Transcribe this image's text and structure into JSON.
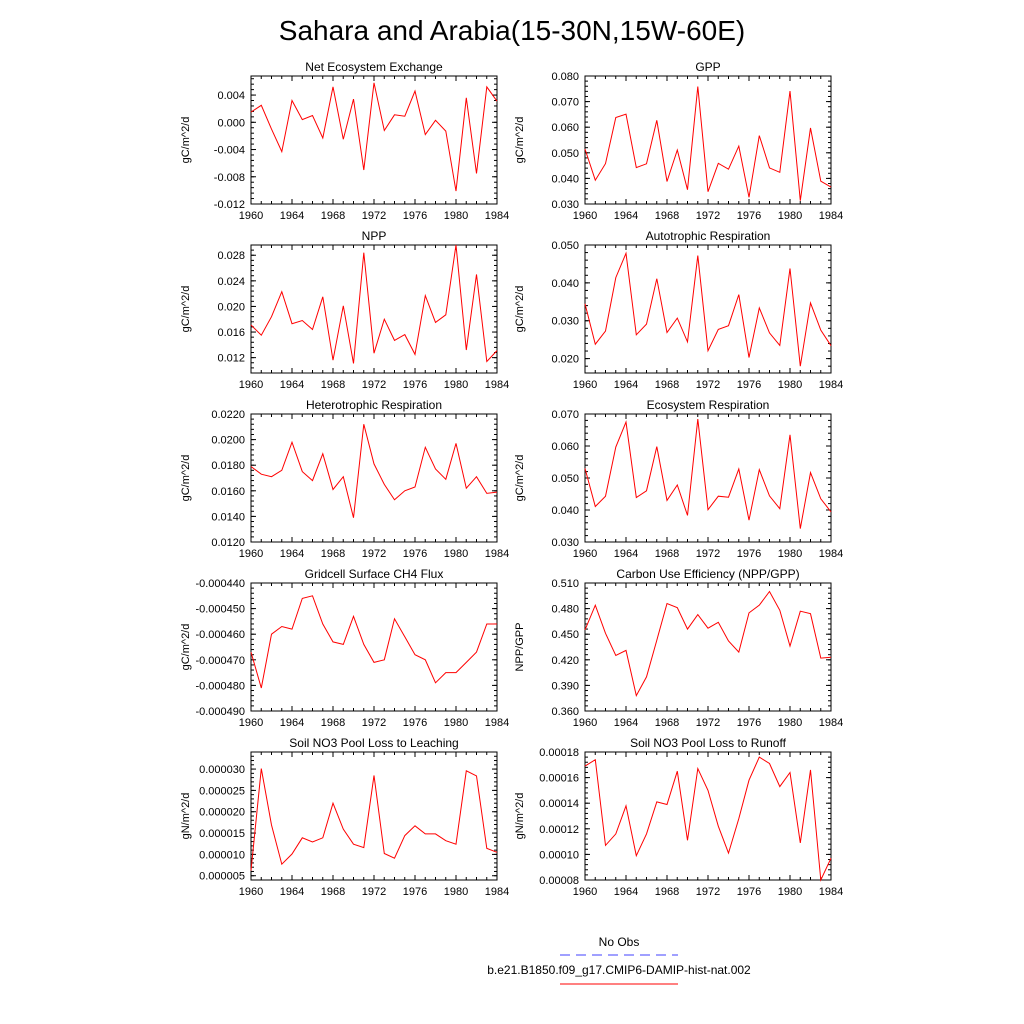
{
  "page": {
    "title": "Sahara and Arabia(15-30N,15W-60E)"
  },
  "colors": {
    "model_line": "#ff0000",
    "obs_line": "#4040ff",
    "axis": "#000000"
  },
  "legend": {
    "obs_label": "No Obs",
    "model_label": "b.e21.B1850.f09_g17.CMIP6-DAMIP-hist-nat.002"
  },
  "chart_data": [
    {
      "type": "line",
      "title": "Net Ecosystem Exchange",
      "ylabel": "gC/m^2/d",
      "ylim": [
        -0.012,
        0.0068
      ],
      "yticks": [
        "0.004",
        "0.000",
        "-0.004",
        "-0.008",
        "-0.012"
      ],
      "ytick_values": [
        0.004,
        0.0,
        -0.004,
        -0.008,
        -0.012
      ],
      "xlim": [
        1960,
        1984
      ],
      "xticks": [
        "1960",
        "1964",
        "1968",
        "1972",
        "1976",
        "1980",
        "1984"
      ],
      "grid": false,
      "series": [
        {
          "x": [
            1960,
            1961,
            1962,
            1963,
            1964,
            1965,
            1966,
            1967,
            1968,
            1969,
            1970,
            1971,
            1972,
            1973,
            1974,
            1975,
            1976,
            1977,
            1978,
            1979,
            1980,
            1981,
            1982,
            1983,
            1984
          ],
          "values": [
            0.0015,
            0.0025,
            -0.001,
            -0.0043,
            0.0032,
            0.0004,
            0.001,
            -0.0023,
            0.0052,
            -0.0025,
            0.0034,
            -0.007,
            0.0058,
            -0.0012,
            0.0011,
            0.0009,
            0.0046,
            -0.0018,
            0.0003,
            -0.0013,
            -0.0101,
            0.0036,
            -0.0075,
            0.0052,
            0.0031
          ]
        }
      ]
    },
    {
      "type": "line",
      "title": "GPP",
      "ylabel": "gC/m^2/d",
      "ylim": [
        0.03,
        0.08
      ],
      "yticks": [
        "0.080",
        "0.070",
        "0.060",
        "0.050",
        "0.040",
        "0.030"
      ],
      "ytick_values": [
        0.08,
        0.07,
        0.06,
        0.05,
        0.04,
        0.03
      ],
      "xlim": [
        1960,
        1984
      ],
      "xticks": [
        "1960",
        "1964",
        "1968",
        "1972",
        "1976",
        "1980",
        "1984"
      ],
      "grid": false,
      "series": [
        {
          "x": [
            1960,
            1961,
            1962,
            1963,
            1964,
            1965,
            1966,
            1967,
            1968,
            1969,
            1970,
            1971,
            1972,
            1973,
            1974,
            1975,
            1976,
            1977,
            1978,
            1979,
            1980,
            1981,
            1982,
            1983,
            1984
          ],
          "values": [
            0.0515,
            0.0393,
            0.0458,
            0.0638,
            0.0651,
            0.0442,
            0.0457,
            0.0627,
            0.0388,
            0.0511,
            0.0356,
            0.0759,
            0.0348,
            0.0459,
            0.0436,
            0.0526,
            0.0326,
            0.0567,
            0.0441,
            0.0424,
            0.0741,
            0.0313,
            0.0597,
            0.0389,
            0.0366
          ]
        }
      ]
    },
    {
      "type": "line",
      "title": "NPP",
      "ylabel": "gC/m^2/d",
      "ylim": [
        0.0096,
        0.0296
      ],
      "yticks": [
        "0.028",
        "0.024",
        "0.020",
        "0.016",
        "0.012"
      ],
      "ytick_values": [
        0.028,
        0.024,
        0.02,
        0.016,
        0.012
      ],
      "xlim": [
        1960,
        1984
      ],
      "xticks": [
        "1960",
        "1964",
        "1968",
        "1972",
        "1976",
        "1980",
        "1984"
      ],
      "grid": false,
      "series": [
        {
          "x": [
            1960,
            1961,
            1962,
            1963,
            1964,
            1965,
            1966,
            1967,
            1968,
            1969,
            1970,
            1971,
            1972,
            1973,
            1974,
            1975,
            1976,
            1977,
            1978,
            1979,
            1980,
            1981,
            1982,
            1983,
            1984
          ],
          "values": [
            0.0171,
            0.0155,
            0.0184,
            0.0223,
            0.0173,
            0.0178,
            0.0164,
            0.0215,
            0.0116,
            0.0201,
            0.0111,
            0.0284,
            0.0127,
            0.018,
            0.0147,
            0.0156,
            0.0125,
            0.0217,
            0.0175,
            0.0187,
            0.0296,
            0.0132,
            0.025,
            0.0114,
            0.0131
          ]
        }
      ]
    },
    {
      "type": "line",
      "title": "Autotrophic Respiration",
      "ylabel": "gC/m^2/d",
      "ylim": [
        0.0162,
        0.05
      ],
      "yticks": [
        "0.050",
        "0.040",
        "0.030",
        "0.020"
      ],
      "ytick_values": [
        0.05,
        0.04,
        0.03,
        0.02
      ],
      "xlim": [
        1960,
        1984
      ],
      "xticks": [
        "1960",
        "1964",
        "1968",
        "1972",
        "1976",
        "1980",
        "1984"
      ],
      "grid": false,
      "series": [
        {
          "x": [
            1960,
            1961,
            1962,
            1963,
            1964,
            1965,
            1966,
            1967,
            1968,
            1969,
            1970,
            1971,
            1972,
            1973,
            1974,
            1975,
            1976,
            1977,
            1978,
            1979,
            1980,
            1981,
            1982,
            1983,
            1984
          ],
          "values": [
            0.0345,
            0.0238,
            0.0273,
            0.0414,
            0.0478,
            0.0263,
            0.0291,
            0.0411,
            0.0269,
            0.0307,
            0.0244,
            0.0472,
            0.0221,
            0.0277,
            0.0287,
            0.0369,
            0.0203,
            0.0334,
            0.0268,
            0.0235,
            0.0438,
            0.018,
            0.0347,
            0.0275,
            0.0234
          ]
        }
      ]
    },
    {
      "type": "line",
      "title": "Heterotrophic Respiration",
      "ylabel": "gC/m^2/d",
      "ylim": [
        0.012,
        0.022
      ],
      "yticks": [
        "0.0220",
        "0.0200",
        "0.0180",
        "0.0160",
        "0.0140",
        "0.0120"
      ],
      "ytick_values": [
        0.022,
        0.02,
        0.018,
        0.016,
        0.014,
        0.012
      ],
      "xlim": [
        1960,
        1984
      ],
      "xticks": [
        "1960",
        "1964",
        "1968",
        "1972",
        "1976",
        "1980",
        "1984"
      ],
      "grid": false,
      "series": [
        {
          "x": [
            1960,
            1961,
            1962,
            1963,
            1964,
            1965,
            1966,
            1967,
            1968,
            1969,
            1970,
            1971,
            1972,
            1973,
            1974,
            1975,
            1976,
            1977,
            1978,
            1979,
            1980,
            1981,
            1982,
            1983,
            1984
          ],
          "values": [
            0.0179,
            0.0173,
            0.0171,
            0.0176,
            0.0198,
            0.0175,
            0.0168,
            0.0189,
            0.0161,
            0.0171,
            0.0139,
            0.0212,
            0.0181,
            0.0165,
            0.0153,
            0.016,
            0.0163,
            0.0194,
            0.0177,
            0.0169,
            0.0197,
            0.0162,
            0.0171,
            0.0158,
            0.0159
          ]
        }
      ]
    },
    {
      "type": "line",
      "title": "Ecosystem Respiration",
      "ylabel": "gC/m^2/d",
      "ylim": [
        0.03,
        0.07
      ],
      "yticks": [
        "0.070",
        "0.060",
        "0.050",
        "0.040",
        "0.030"
      ],
      "ytick_values": [
        0.07,
        0.06,
        0.05,
        0.04,
        0.03
      ],
      "xlim": [
        1960,
        1984
      ],
      "xticks": [
        "1960",
        "1964",
        "1968",
        "1972",
        "1976",
        "1980",
        "1984"
      ],
      "grid": false,
      "series": [
        {
          "x": [
            1960,
            1961,
            1962,
            1963,
            1964,
            1965,
            1966,
            1967,
            1968,
            1969,
            1970,
            1971,
            1972,
            1973,
            1974,
            1975,
            1976,
            1977,
            1978,
            1979,
            1980,
            1981,
            1982,
            1983,
            1984
          ],
          "values": [
            0.053,
            0.0411,
            0.0443,
            0.0597,
            0.0675,
            0.0439,
            0.046,
            0.0598,
            0.043,
            0.0478,
            0.0383,
            0.0684,
            0.0401,
            0.0443,
            0.044,
            0.0528,
            0.0368,
            0.0526,
            0.0444,
            0.0404,
            0.0635,
            0.0342,
            0.0517,
            0.0435,
            0.0394
          ]
        }
      ]
    },
    {
      "type": "line",
      "title": "Gridcell Surface CH4 Flux",
      "ylabel": "gC/m^2/d",
      "ylim": [
        -0.00049,
        -0.00044
      ],
      "yticks": [
        "-0.000440",
        "-0.000450",
        "-0.000460",
        "-0.000470",
        "-0.000480",
        "-0.000490"
      ],
      "ytick_values": [
        -0.00044,
        -0.00045,
        -0.00046,
        -0.00047,
        -0.00048,
        -0.00049
      ],
      "xlim": [
        1960,
        1984
      ],
      "xticks": [
        "1960",
        "1964",
        "1968",
        "1972",
        "1976",
        "1980",
        "1984"
      ],
      "grid": false,
      "series": [
        {
          "x": [
            1960,
            1961,
            1962,
            1963,
            1964,
            1965,
            1966,
            1967,
            1968,
            1969,
            1970,
            1971,
            1972,
            1973,
            1974,
            1975,
            1976,
            1977,
            1978,
            1979,
            1980,
            1981,
            1982,
            1983,
            1984
          ],
          "values": [
            -0.000467,
            -0.000481,
            -0.00046,
            -0.000457,
            -0.000458,
            -0.000446,
            -0.000445,
            -0.000456,
            -0.000463,
            -0.000464,
            -0.000453,
            -0.000464,
            -0.000471,
            -0.00047,
            -0.000454,
            -0.000461,
            -0.000468,
            -0.00047,
            -0.000479,
            -0.000475,
            -0.000475,
            -0.000471,
            -0.000467,
            -0.000456,
            -0.000456
          ]
        }
      ]
    },
    {
      "type": "line",
      "title": "Carbon Use Efficiency (NPP/GPP)",
      "ylabel": "NPP/GPP",
      "ylim": [
        0.36,
        0.51
      ],
      "yticks": [
        "0.510",
        "0.480",
        "0.450",
        "0.420",
        "0.390",
        "0.360"
      ],
      "ytick_values": [
        0.51,
        0.48,
        0.45,
        0.42,
        0.39,
        0.36
      ],
      "xlim": [
        1960,
        1984
      ],
      "xticks": [
        "1960",
        "1964",
        "1968",
        "1972",
        "1976",
        "1980",
        "1984"
      ],
      "grid": false,
      "series": [
        {
          "x": [
            1960,
            1961,
            1962,
            1963,
            1964,
            1965,
            1966,
            1967,
            1968,
            1969,
            1970,
            1971,
            1972,
            1973,
            1974,
            1975,
            1976,
            1977,
            1978,
            1979,
            1980,
            1981,
            1982,
            1983,
            1984
          ],
          "values": [
            0.455,
            0.484,
            0.451,
            0.425,
            0.431,
            0.378,
            0.4,
            0.443,
            0.486,
            0.481,
            0.456,
            0.473,
            0.457,
            0.464,
            0.442,
            0.429,
            0.475,
            0.484,
            0.5,
            0.478,
            0.436,
            0.477,
            0.474,
            0.422,
            0.423
          ]
        }
      ]
    },
    {
      "type": "line",
      "title": "Soil NO3 Pool Loss to Leaching",
      "ylabel": "gN/m^2/d",
      "ylim": [
        4e-06,
        3.4e-05
      ],
      "yticks": [
        "0.000030",
        "0.000025",
        "0.000020",
        "0.000015",
        "0.000010",
        "0.000005"
      ],
      "ytick_values": [
        3e-05,
        2.5e-05,
        2e-05,
        1.5e-05,
        1e-05,
        5e-06
      ],
      "xlim": [
        1960,
        1984
      ],
      "xticks": [
        "1960",
        "1964",
        "1968",
        "1972",
        "1976",
        "1980",
        "1984"
      ],
      "grid": false,
      "series": [
        {
          "x": [
            1960,
            1961,
            1962,
            1963,
            1964,
            1965,
            1966,
            1967,
            1968,
            1969,
            1970,
            1971,
            1972,
            1973,
            1974,
            1975,
            1976,
            1977,
            1978,
            1979,
            1980,
            1981,
            1982,
            1983,
            1984
          ],
          "values": [
            6.2e-06,
            3.01e-05,
            1.69e-05,
            7.7e-06,
            1.01e-05,
            1.39e-05,
            1.29e-05,
            1.39e-05,
            2.2e-05,
            1.59e-05,
            1.24e-05,
            1.16e-05,
            2.85e-05,
            1.02e-05,
            9.1e-06,
            1.44e-05,
            1.67e-05,
            1.48e-05,
            1.48e-05,
            1.32e-05,
            1.24e-05,
            2.96e-05,
            2.84e-05,
            1.14e-05,
            1.05e-05
          ]
        }
      ]
    },
    {
      "type": "line",
      "title": "Soil NO3 Pool Loss to Runoff",
      "ylabel": "gN/m^2/d",
      "ylim": [
        8e-05,
        0.00018
      ],
      "yticks": [
        "0.00018",
        "0.00016",
        "0.00014",
        "0.00012",
        "0.00010",
        "0.00008"
      ],
      "ytick_values": [
        0.00018,
        0.00016,
        0.00014,
        0.00012,
        0.0001,
        8e-05
      ],
      "xlim": [
        1960,
        1984
      ],
      "xticks": [
        "1960",
        "1964",
        "1968",
        "1972",
        "1976",
        "1980",
        "1984"
      ],
      "grid": false,
      "series": [
        {
          "x": [
            1960,
            1961,
            1962,
            1963,
            1964,
            1965,
            1966,
            1967,
            1968,
            1969,
            1970,
            1971,
            1972,
            1973,
            1974,
            1975,
            1976,
            1977,
            1978,
            1979,
            1980,
            1981,
            1982,
            1983,
            1984
          ],
          "values": [
            0.000169,
            0.000174,
            0.000107,
            0.000116,
            0.000138,
            9.9e-05,
            0.000116,
            0.000141,
            0.000139,
            0.000165,
            0.000111,
            0.000167,
            0.00015,
            0.000122,
            0.000101,
            0.000128,
            0.000158,
            0.000176,
            0.000171,
            0.000153,
            0.000164,
            0.000109,
            0.000166,
            8e-05,
            9.7e-05
          ]
        }
      ]
    }
  ]
}
